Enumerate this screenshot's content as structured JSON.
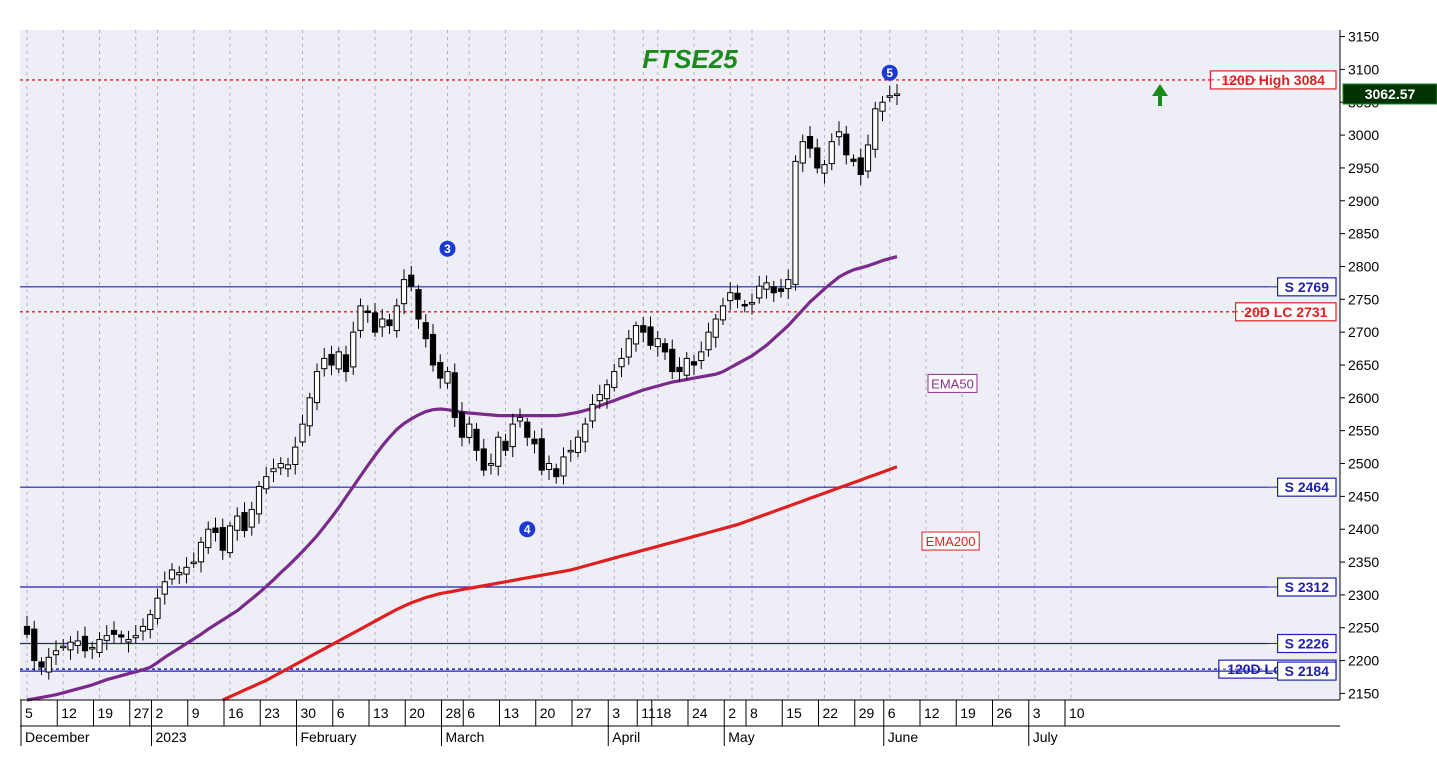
{
  "chart_data": {
    "type": "candlestick",
    "title": "FTSE25",
    "title_color": "#1a8a1a",
    "ylim": [
      2140,
      3160
    ],
    "y_ticks": [
      2150,
      2200,
      2250,
      2300,
      2350,
      2400,
      2450,
      2500,
      2550,
      2600,
      2650,
      2700,
      2750,
      2800,
      2850,
      2900,
      2950,
      3000,
      3050,
      3100,
      3150
    ],
    "x_ticks": [
      {
        "i": 0,
        "label": "5"
      },
      {
        "i": 5,
        "label": "12"
      },
      {
        "i": 10,
        "label": "19"
      },
      {
        "i": 15,
        "label": "27"
      },
      {
        "i": 18,
        "label": "2"
      },
      {
        "i": 23,
        "label": "9"
      },
      {
        "i": 28,
        "label": "16"
      },
      {
        "i": 33,
        "label": "23"
      },
      {
        "i": 38,
        "label": "30"
      },
      {
        "i": 43,
        "label": "6"
      },
      {
        "i": 48,
        "label": "13"
      },
      {
        "i": 53,
        "label": "20"
      },
      {
        "i": 58,
        "label": "28"
      },
      {
        "i": 61,
        "label": "6"
      },
      {
        "i": 66,
        "label": "13"
      },
      {
        "i": 71,
        "label": "20"
      },
      {
        "i": 76,
        "label": "27"
      },
      {
        "i": 81,
        "label": "3"
      },
      {
        "i": 85,
        "label": "11"
      },
      {
        "i": 87,
        "label": "18"
      },
      {
        "i": 92,
        "label": "24"
      },
      {
        "i": 97,
        "label": "2"
      },
      {
        "i": 100,
        "label": "8"
      },
      {
        "i": 105,
        "label": "15"
      },
      {
        "i": 110,
        "label": "22"
      },
      {
        "i": 115,
        "label": "29"
      },
      {
        "i": 119,
        "label": "6"
      },
      {
        "i": 124,
        "label": "12"
      },
      {
        "i": 129,
        "label": "19"
      },
      {
        "i": 134,
        "label": "26"
      },
      {
        "i": 139,
        "label": "3"
      },
      {
        "i": 144,
        "label": "10"
      }
    ],
    "month_labels": [
      {
        "i": 0,
        "label": "December"
      },
      {
        "i": 18,
        "label": "2023"
      },
      {
        "i": 38,
        "label": "February"
      },
      {
        "i": 58,
        "label": "March"
      },
      {
        "i": 81,
        "label": "April"
      },
      {
        "i": 97,
        "label": "May"
      },
      {
        "i": 119,
        "label": "June"
      },
      {
        "i": 139,
        "label": "July"
      }
    ],
    "last_price": {
      "value": 3062.57,
      "label": "3062.57"
    },
    "levels": [
      {
        "value": 3084,
        "label": "120D High 3084",
        "color": "#e02020",
        "style": "dotted"
      },
      {
        "value": 2769,
        "label": "S 2769",
        "color": "#2020b0",
        "style": "solid"
      },
      {
        "value": 2731,
        "label": "20D LC 2731",
        "color": "#e02020",
        "style": "dotted"
      },
      {
        "value": 2464,
        "label": "S 2464",
        "color": "#2020b0",
        "style": "solid"
      },
      {
        "value": 2312,
        "label": "S 2312",
        "color": "#2020b0",
        "style": "solid"
      },
      {
        "value": 2226,
        "label": "S 2226",
        "color": "#2020b0",
        "style": "solid"
      },
      {
        "value": 2187,
        "label": "120D Low 2187",
        "color": "#2020b0",
        "style": "dotted"
      },
      {
        "value": 2184,
        "label": "S 2184",
        "color": "#2020b0",
        "style": "solid"
      }
    ],
    "ema_labels": [
      {
        "name": "EMA50",
        "label": "EMA50",
        "color": "#8b2f8b"
      },
      {
        "name": "EMA200",
        "label": "EMA200",
        "color": "#e02020"
      }
    ],
    "annotations": [
      {
        "label": "3",
        "i": 58,
        "value": 2827
      },
      {
        "label": "4",
        "i": 69,
        "value": 2400
      },
      {
        "label": "5",
        "i": 119,
        "value": 3095
      }
    ],
    "closes": [
      2240,
      2200,
      2190,
      2205,
      2215,
      2222,
      2228,
      2230,
      2215,
      2220,
      2232,
      2238,
      2240,
      2236,
      2232,
      2238,
      2252,
      2270,
      2295,
      2320,
      2338,
      2334,
      2342,
      2350,
      2380,
      2400,
      2395,
      2368,
      2405,
      2420,
      2398,
      2430,
      2465,
      2480,
      2492,
      2500,
      2498,
      2525,
      2560,
      2600,
      2640,
      2660,
      2650,
      2670,
      2640,
      2700,
      2740,
      2730,
      2700,
      2720,
      2710,
      2740,
      2780,
      2770,
      2720,
      2690,
      2650,
      2630,
      2640,
      2570,
      2540,
      2560,
      2520,
      2490,
      2500,
      2540,
      2520,
      2560,
      2570,
      2540,
      2530,
      2490,
      2500,
      2480,
      2510,
      2520,
      2540,
      2560,
      2590,
      2605,
      2620,
      2640,
      2660,
      2690,
      2710,
      2700,
      2680,
      2690,
      2670,
      2640,
      2640,
      2660,
      2650,
      2670,
      2700,
      2720,
      2740,
      2760,
      2750,
      2740,
      2745,
      2770,
      2775,
      2760,
      2762,
      2780,
      2960,
      2990,
      2980,
      2950,
      2955,
      2990,
      3005,
      2970,
      2960,
      2940,
      2985,
      3040,
      3050,
      3060,
      3062.57
    ],
    "ema50": [
      2140,
      2142,
      2144,
      2146,
      2148,
      2151,
      2154,
      2157,
      2160,
      2163,
      2167,
      2171,
      2174,
      2177,
      2180,
      2183,
      2186,
      2190,
      2197,
      2205,
      2212,
      2219,
      2226,
      2233,
      2240,
      2248,
      2255,
      2262,
      2269,
      2276,
      2285,
      2294,
      2303,
      2313,
      2323,
      2334,
      2344,
      2355,
      2366,
      2378,
      2390,
      2404,
      2418,
      2433,
      2449,
      2465,
      2481,
      2497,
      2512,
      2527,
      2540,
      2552,
      2561,
      2568,
      2574,
      2579,
      2582,
      2583,
      2582,
      2580,
      2578,
      2577,
      2576,
      2575,
      2574,
      2573,
      2573,
      2573,
      2573,
      2573,
      2573,
      2573,
      2573,
      2573,
      2574,
      2576,
      2578,
      2581,
      2584,
      2588,
      2592,
      2596,
      2600,
      2604,
      2608,
      2612,
      2615,
      2618,
      2621,
      2624,
      2626,
      2628,
      2630,
      2632,
      2634,
      2636,
      2640,
      2646,
      2652,
      2658,
      2664,
      2672,
      2680,
      2690,
      2700,
      2710,
      2722,
      2734,
      2746,
      2756,
      2766,
      2775,
      2784,
      2790,
      2795,
      2798,
      2801,
      2805,
      2809,
      2812,
      2815
    ],
    "ema200": [
      2100,
      2101,
      2102,
      2103,
      2104,
      2105,
      2106,
      2107,
      2108,
      2109,
      2110,
      2111,
      2112,
      2113,
      2114,
      2115,
      2116,
      2117,
      2118,
      2119,
      2120,
      2121,
      2122,
      2124,
      2128,
      2132,
      2136,
      2140,
      2145,
      2150,
      2155,
      2160,
      2165,
      2170,
      2176,
      2182,
      2188,
      2194,
      2200,
      2206,
      2212,
      2218,
      2224,
      2230,
      2236,
      2242,
      2248,
      2254,
      2260,
      2266,
      2272,
      2278,
      2283,
      2288,
      2292,
      2296,
      2299,
      2302,
      2304,
      2306,
      2308,
      2310,
      2312,
      2314,
      2316,
      2318,
      2320,
      2322,
      2324,
      2326,
      2328,
      2330,
      2332,
      2334,
      2336,
      2338,
      2341,
      2344,
      2347,
      2350,
      2353,
      2356,
      2359,
      2362,
      2365,
      2368,
      2371,
      2374,
      2377,
      2380,
      2383,
      2386,
      2389,
      2392,
      2395,
      2398,
      2401,
      2404,
      2407,
      2411,
      2415,
      2419,
      2423,
      2427,
      2431,
      2435,
      2439,
      2443,
      2447,
      2451,
      2455,
      2459,
      2463,
      2467,
      2471,
      2475,
      2479,
      2483,
      2487,
      2491,
      2495
    ]
  }
}
